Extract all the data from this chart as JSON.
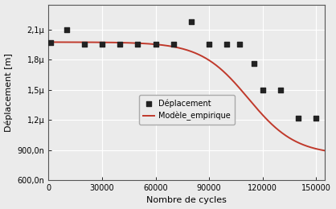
{
  "scatter_x": [
    1000,
    10000,
    20000,
    30000,
    40000,
    50000,
    60000,
    70000,
    80000,
    90000,
    100000,
    107000,
    115000,
    120000,
    130000,
    140000,
    150000
  ],
  "scatter_y": [
    1.97e-06,
    2.1e-06,
    1.95e-06,
    1.95e-06,
    1.95e-06,
    1.95e-06,
    1.95e-06,
    1.95e-06,
    2.18e-06,
    1.95e-06,
    1.95e-06,
    1.95e-06,
    1.76e-06,
    1.5e-06,
    1.5e-06,
    1.22e-06,
    1.22e-06
  ],
  "curve_x_end": 155000,
  "xlabel": "Nombre de cycles",
  "ylabel": "Déplacement [m]",
  "legend_scatter": "Déplacement",
  "legend_line": "Modèle_empirique",
  "xlim": [
    0,
    155000
  ],
  "ylim": [
    6e-07,
    2.35e-06
  ],
  "yticks": [
    6e-07,
    9e-07,
    1.2e-06,
    1.5e-06,
    1.8e-06,
    2.1e-06
  ],
  "ytick_labels": [
    "600,0n",
    "900,0n",
    "1,2μ",
    "1,5μ",
    "1,8μ",
    "2,1μ"
  ],
  "xticks": [
    0,
    30000,
    60000,
    90000,
    120000,
    150000
  ],
  "xtick_labels": [
    "0",
    "30000",
    "60000",
    "90000",
    "120000",
    "150000"
  ],
  "scatter_color": "#222222",
  "line_color": "#c0392b",
  "background_color": "#ebebeb",
  "grid_color": "#ffffff",
  "scatter_size": 22,
  "curve_flat": 1.975e-06,
  "curve_low": 8.5e-07,
  "curve_knee": 112000,
  "curve_k": 7.5e-05
}
